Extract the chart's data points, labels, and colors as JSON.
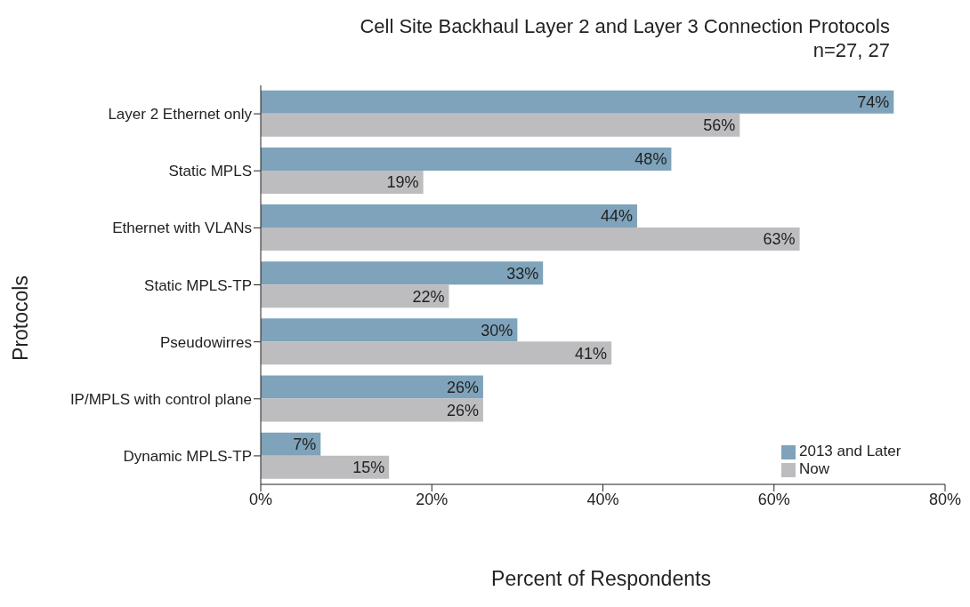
{
  "chart_data": {
    "type": "bar",
    "orientation": "horizontal",
    "title": "Cell Site Backhaul Layer 2 and Layer 3 Connection Protocols",
    "subtitle": "n=27, 27",
    "xlabel": "Percent of Respondents",
    "ylabel": "Protocols",
    "categories": [
      "Layer 2 Ethernet only",
      "Static MPLS",
      "Ethernet with VLANs",
      "Static MPLS-TP",
      "Pseudowirres",
      "IP/MPLS with control plane",
      "Dynamic MPLS-TP"
    ],
    "series": [
      {
        "name": "2013 and Later",
        "color": "#7ea3ba",
        "values": [
          74,
          48,
          44,
          33,
          30,
          26,
          7
        ],
        "value_labels": [
          "74%",
          "48%",
          "44%",
          "33%",
          "30%",
          "26%",
          "7%"
        ]
      },
      {
        "name": "Now",
        "color": "#bdbdc0",
        "values": [
          56,
          19,
          63,
          22,
          41,
          26,
          15
        ],
        "value_labels": [
          "56%",
          "19%",
          "63%",
          "22%",
          "41%",
          "26%",
          "15%"
        ]
      }
    ],
    "xlim": [
      0,
      80
    ],
    "xticks": [
      {
        "value": 0,
        "label": "0%"
      },
      {
        "value": 20,
        "label": "20%"
      },
      {
        "value": 40,
        "label": "40%"
      },
      {
        "value": 60,
        "label": "60%"
      },
      {
        "value": 80,
        "label": "80%"
      }
    ],
    "grid": false,
    "legend": "bottom right"
  }
}
